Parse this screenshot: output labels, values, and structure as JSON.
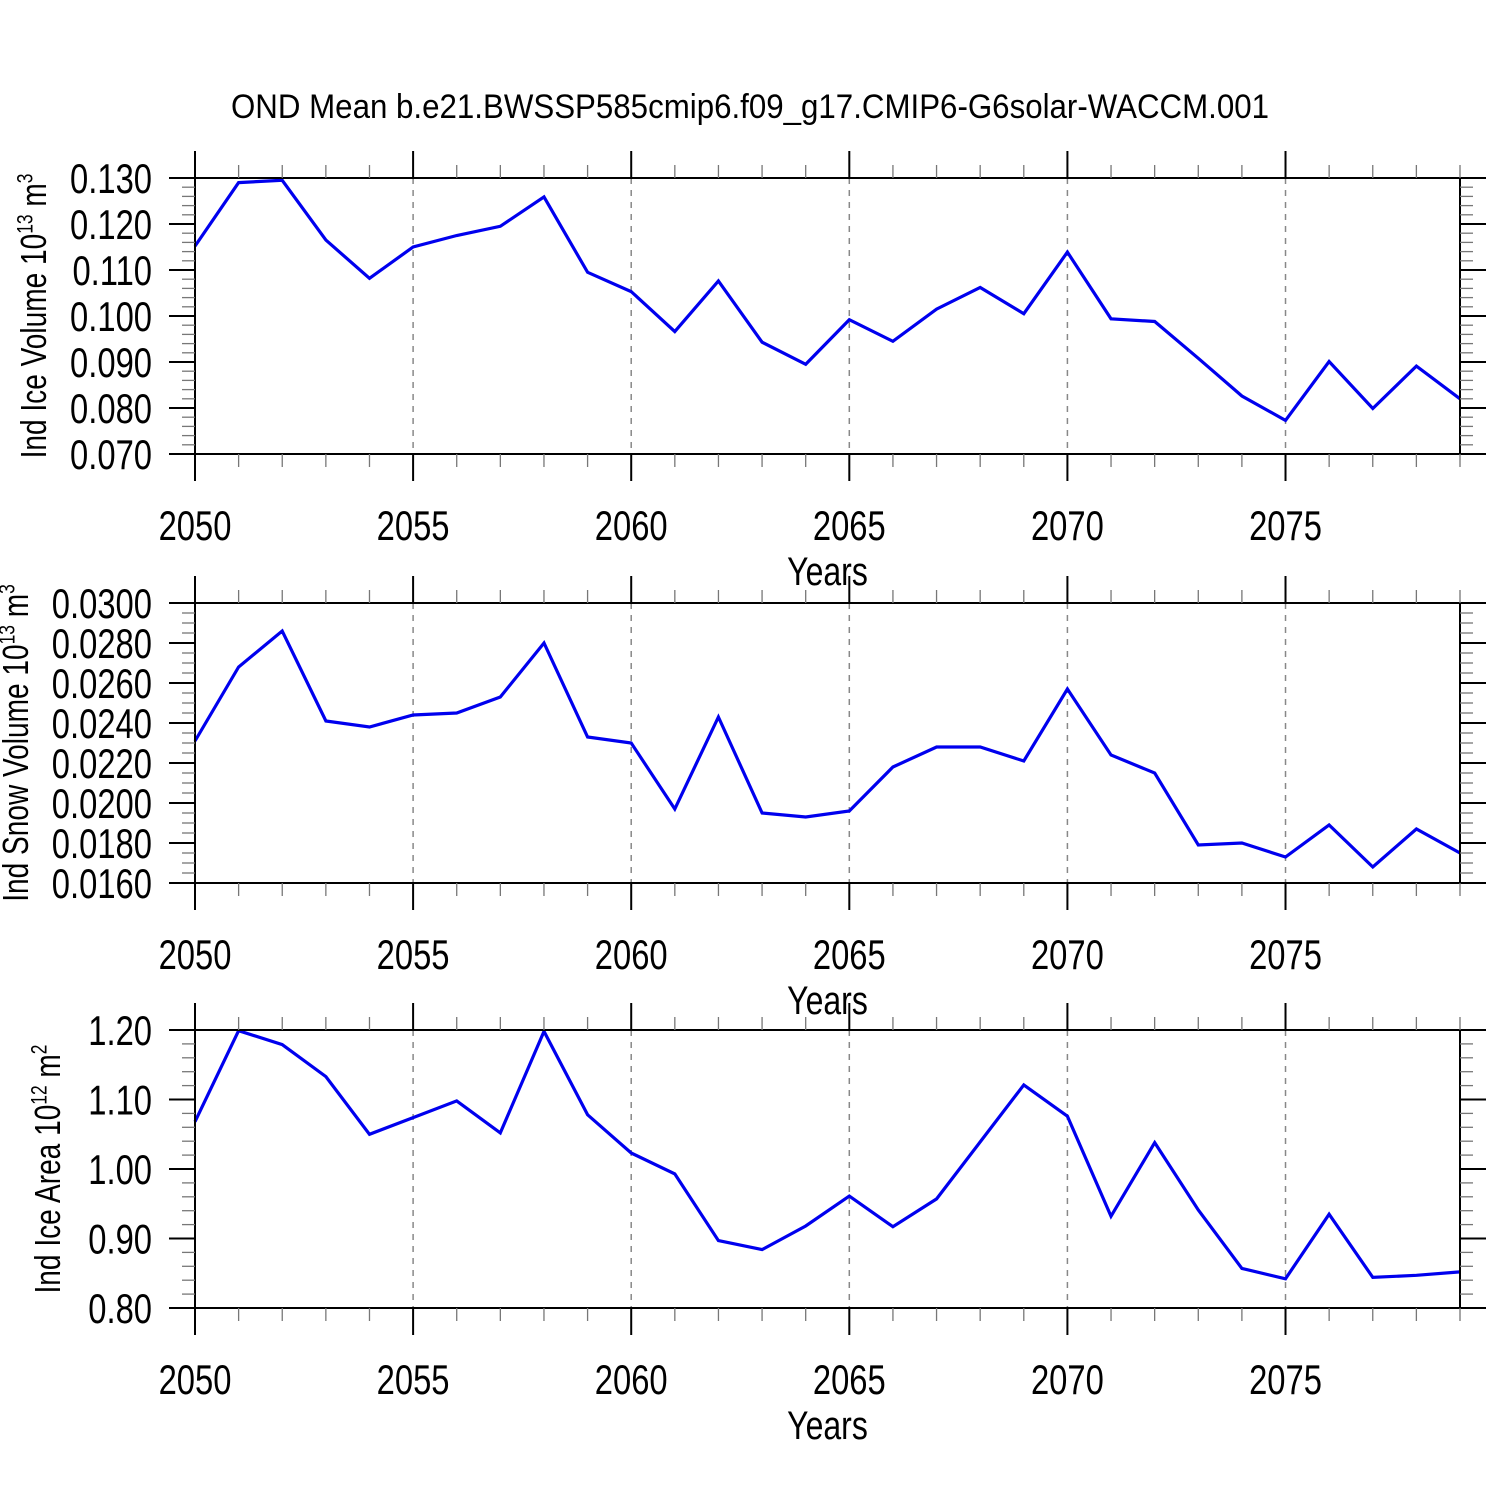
{
  "title": "OND Mean b.e21.BWSSP585cmip6.f09_g17.CMIP6-G6solar-WACCM.001",
  "colors": {
    "line": "#0000ee",
    "grid": "#888888",
    "axis": "#000000",
    "minor_tick": "#777777"
  },
  "chart_data": [
    {
      "type": "line",
      "id": "ice-volume",
      "xlabel": "Years",
      "ylabel": "Ind Ice Volume 10^13 m^3",
      "x": [
        2050,
        2051,
        2052,
        2053,
        2054,
        2055,
        2056,
        2057,
        2058,
        2059,
        2060,
        2061,
        2062,
        2063,
        2064,
        2065,
        2066,
        2067,
        2068,
        2069,
        2070,
        2071,
        2072,
        2073,
        2074,
        2075,
        2076,
        2077,
        2078,
        2079
      ],
      "values": [
        0.1152,
        0.129,
        0.1295,
        0.1165,
        0.1082,
        0.115,
        0.1175,
        0.1195,
        0.1259,
        0.1095,
        0.1053,
        0.0966,
        0.1076,
        0.0943,
        0.0895,
        0.0992,
        0.0945,
        0.1015,
        0.1062,
        0.1005,
        0.1139,
        0.0994,
        0.0988,
        0.0908,
        0.0826,
        0.0773,
        0.0901,
        0.0799,
        0.0891,
        0.082
      ],
      "ylim": [
        0.07,
        0.13
      ],
      "yticks": {
        "values": [
          0.07,
          0.08,
          0.09,
          0.1,
          0.11,
          0.12,
          0.13
        ],
        "labels": [
          "0.070",
          "0.080",
          "0.090",
          "0.100",
          "0.110",
          "0.120",
          "0.130"
        ],
        "minor_step": 0.002
      },
      "xlim": [
        2050,
        2079
      ],
      "xticks": {
        "major": [
          2050,
          2055,
          2060,
          2065,
          2070,
          2075
        ],
        "labels": [
          "2050",
          "2055",
          "2060",
          "2065",
          "2070",
          "2075"
        ],
        "minor_step": 1
      },
      "gridlines_x": [
        2055,
        2060,
        2065,
        2070,
        2075
      ],
      "grid": true,
      "legend": "none"
    },
    {
      "type": "line",
      "id": "snow-volume",
      "xlabel": "Years",
      "ylabel": "Ind Snow Volume 10^13 m^3",
      "x": [
        2050,
        2051,
        2052,
        2053,
        2054,
        2055,
        2056,
        2057,
        2058,
        2059,
        2060,
        2061,
        2062,
        2063,
        2064,
        2065,
        2066,
        2067,
        2068,
        2069,
        2070,
        2071,
        2072,
        2073,
        2074,
        2075,
        2076,
        2077,
        2078,
        2079
      ],
      "values": [
        0.0231,
        0.0268,
        0.0286,
        0.0241,
        0.0238,
        0.0244,
        0.0245,
        0.0253,
        0.028,
        0.0233,
        0.023,
        0.0197,
        0.0243,
        0.0195,
        0.0193,
        0.0196,
        0.0218,
        0.0228,
        0.0228,
        0.0221,
        0.0257,
        0.0224,
        0.0215,
        0.0179,
        0.018,
        0.0173,
        0.0189,
        0.0168,
        0.0187,
        0.0175
      ],
      "ylim": [
        0.016,
        0.03
      ],
      "yticks": {
        "values": [
          0.016,
          0.018,
          0.02,
          0.022,
          0.024,
          0.026,
          0.028,
          0.03
        ],
        "labels": [
          "0.0160",
          "0.0180",
          "0.0200",
          "0.0220",
          "0.0240",
          "0.0260",
          "0.0280",
          "0.0300"
        ],
        "minor_step": 0.0005
      },
      "xlim": [
        2050,
        2079
      ],
      "xticks": {
        "major": [
          2050,
          2055,
          2060,
          2065,
          2070,
          2075
        ],
        "labels": [
          "2050",
          "2055",
          "2060",
          "2065",
          "2070",
          "2075"
        ],
        "minor_step": 1
      },
      "gridlines_x": [
        2055,
        2060,
        2065,
        2070,
        2075
      ],
      "grid": true,
      "legend": "none"
    },
    {
      "type": "line",
      "id": "ice-area",
      "xlabel": "Years",
      "ylabel": "Ind Ice Area 10^12 m^2",
      "x": [
        2050,
        2051,
        2052,
        2053,
        2054,
        2055,
        2056,
        2057,
        2058,
        2059,
        2060,
        2061,
        2062,
        2063,
        2064,
        2065,
        2066,
        2067,
        2068,
        2069,
        2070,
        2071,
        2072,
        2073,
        2074,
        2075,
        2076,
        2077,
        2078,
        2079
      ],
      "values": [
        1.068,
        1.199,
        1.179,
        1.133,
        1.05,
        1.074,
        1.098,
        1.052,
        1.198,
        1.078,
        1.023,
        0.993,
        0.897,
        0.884,
        0.918,
        0.961,
        0.917,
        0.957,
        1.039,
        1.121,
        1.076,
        0.932,
        1.038,
        0.941,
        0.857,
        0.842,
        0.935,
        0.844,
        0.847,
        0.852
      ],
      "ylim": [
        0.8,
        1.2
      ],
      "yticks": {
        "values": [
          0.8,
          0.9,
          1.0,
          1.1,
          1.2
        ],
        "labels": [
          "0.80",
          "0.90",
          "1.00",
          "1.10",
          "1.20"
        ],
        "minor_step": 0.02
      },
      "xlim": [
        2050,
        2079
      ],
      "xticks": {
        "major": [
          2050,
          2055,
          2060,
          2065,
          2070,
          2075
        ],
        "labels": [
          "2050",
          "2055",
          "2060",
          "2065",
          "2070",
          "2075"
        ],
        "minor_step": 1
      },
      "gridlines_x": [
        2055,
        2060,
        2065,
        2070,
        2075
      ],
      "grid": true,
      "legend": "none"
    }
  ]
}
